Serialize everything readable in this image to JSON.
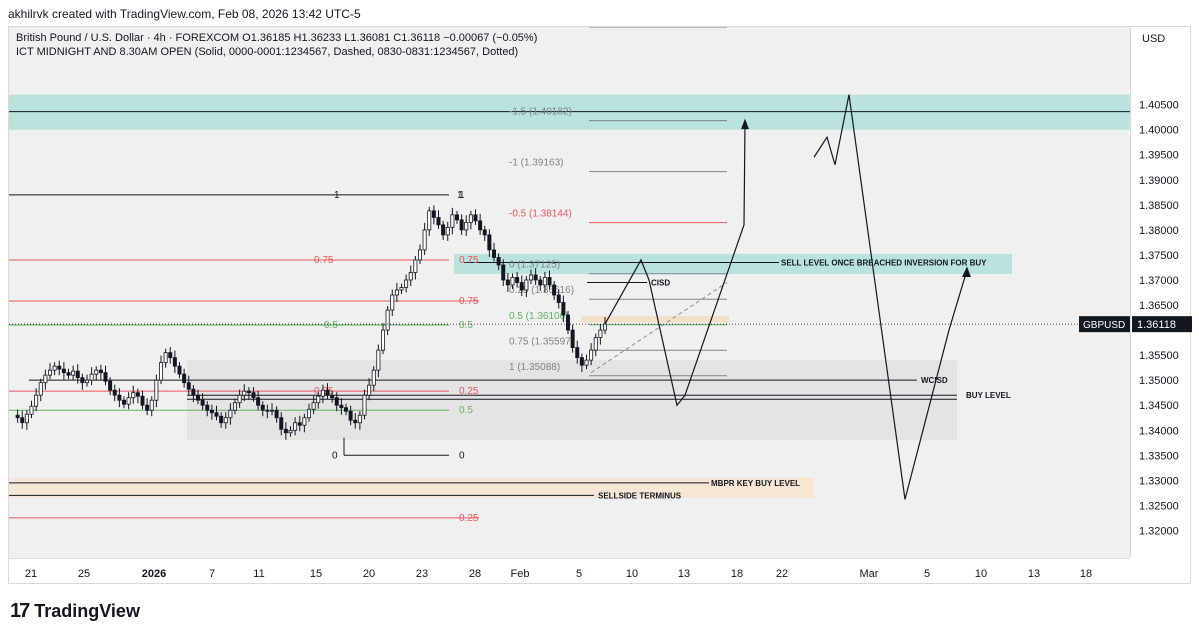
{
  "header": {
    "attribution": "akhilrvk created with TradingView.com, Feb 08, 2026 13:42 UTC-5"
  },
  "legend": {
    "line1": "British Pound / U.S. Dollar · 4h · FOREXCOM  O1.36185  H1.36233  L1.36081  C1.36118  −0.00067 (−0.05%)",
    "line2": "ICT MIDNIGHT AND 8.30AM OPEN (Solid, 0000-0001:1234567, Dashed, 0830-0831:1234567, Dotted)"
  },
  "currency": "USD",
  "brand": {
    "mark": "17",
    "name": "TradingView"
  },
  "colors": {
    "zone_teal": "#b9e3dc",
    "zone_peach": "#f6e6d3",
    "zone_grey": "#e6e6e6",
    "bg_plot": "#f0f0f0",
    "red_level": "#e8575a",
    "green_level": "#5fb55d",
    "orange_level": "#f3b574",
    "candle_up": "#ffffff",
    "candle_down": "#131722",
    "line_dark": "#131722",
    "fib_grey": "#7f8389"
  },
  "chart_data": {
    "type": "candlestick",
    "title": "British Pound / U.S. Dollar · 4h · FOREXCOM",
    "symbol": "GBPUSD",
    "last_price": "1.36118",
    "ylim": [
      1.3145,
      1.4205
    ],
    "y_ticks": [
      "1.40500",
      "1.40000",
      "1.39500",
      "1.39000",
      "1.38500",
      "1.38000",
      "1.37500",
      "1.37000",
      "1.36500",
      "1.35500",
      "1.35000",
      "1.34500",
      "1.34000",
      "1.33500",
      "1.33000",
      "1.32500",
      "1.32000"
    ],
    "x_ticks": [
      {
        "label": "21",
        "bold": false
      },
      {
        "label": "25",
        "bold": false
      },
      {
        "label": "2026",
        "bold": true
      },
      {
        "label": "7",
        "bold": false
      },
      {
        "label": "11",
        "bold": false
      },
      {
        "label": "15",
        "bold": false
      },
      {
        "label": "20",
        "bold": false
      },
      {
        "label": "23",
        "bold": false
      },
      {
        "label": "28",
        "bold": false
      },
      {
        "label": "Feb",
        "bold": false
      },
      {
        "label": "5",
        "bold": false
      },
      {
        "label": "10",
        "bold": false
      },
      {
        "label": "13",
        "bold": false
      },
      {
        "label": "18",
        "bold": false
      },
      {
        "label": "22",
        "bold": false
      },
      {
        "label": "Mar",
        "bold": false
      },
      {
        "label": "5",
        "bold": false
      },
      {
        "label": "10",
        "bold": false
      },
      {
        "label": "13",
        "bold": false
      },
      {
        "label": "18",
        "bold": false
      }
    ],
    "price_path": [
      1.343,
      1.3425,
      1.3415,
      1.3432,
      1.3448,
      1.347,
      1.3495,
      1.351,
      1.352,
      1.3528,
      1.3522,
      1.3515,
      1.351,
      1.3518,
      1.3505,
      1.3495,
      1.35,
      1.3512,
      1.352,
      1.3515,
      1.3498,
      1.348,
      1.347,
      1.346,
      1.3452,
      1.3465,
      1.3475,
      1.3468,
      1.345,
      1.344,
      1.346,
      1.35,
      1.3535,
      1.3555,
      1.3545,
      1.3528,
      1.3512,
      1.3495,
      1.3482,
      1.347,
      1.346,
      1.345,
      1.344,
      1.3435,
      1.3428,
      1.3415,
      1.3425,
      1.344,
      1.3455,
      1.347,
      1.3478,
      1.3475,
      1.3465,
      1.345,
      1.344,
      1.3438,
      1.344,
      1.3425,
      1.3402,
      1.3395,
      1.34,
      1.3415,
      1.341,
      1.3425,
      1.3442,
      1.3455,
      1.3468,
      1.348,
      1.347,
      1.3465,
      1.345,
      1.3445,
      1.3438,
      1.342,
      1.3415,
      1.343,
      1.347,
      1.349,
      1.352,
      1.356,
      1.36,
      1.364,
      1.367,
      1.368,
      1.3685,
      1.37,
      1.3715,
      1.374,
      1.376,
      1.38,
      1.3838,
      1.3825,
      1.381,
      1.379,
      1.3805,
      1.383,
      1.382,
      1.38,
      1.3815,
      1.383,
      1.3818,
      1.38,
      1.379,
      1.376,
      1.3745,
      1.373,
      1.37,
      1.369,
      1.3705,
      1.3695,
      1.368,
      1.37,
      1.371,
      1.37,
      1.369,
      1.3705,
      1.369,
      1.367,
      1.3655,
      1.363,
      1.36,
      1.3565,
      1.3545,
      1.353,
      1.354,
      1.356,
      1.3585,
      1.36,
      1.3612
    ],
    "zones": [
      {
        "name": "teal-top",
        "from": 1.4,
        "to": 1.407,
        "color": "#b9e3dc"
      },
      {
        "name": "teal-sell",
        "from": 1.3712,
        "to": 1.3752,
        "color": "#b9e3dc"
      },
      {
        "name": "orange-band",
        "from": 1.3615,
        "to": 1.3628,
        "color": "#f3e0c8"
      },
      {
        "name": "grey-box",
        "from": 1.338,
        "to": 1.354,
        "color": "#e4e4e4"
      },
      {
        "name": "peach-low",
        "from": 1.3265,
        "to": 1.3305,
        "color": "#f6e6d3"
      }
    ],
    "levels": [
      {
        "price": 1.4036,
        "style": "solid",
        "color": "#131722",
        "label": ""
      },
      {
        "price": 1.3735,
        "style": "solid",
        "color": "#131722",
        "label": "SELL LEVEL ONCE BREACHED INVERSION FOR BUY"
      },
      {
        "price": 1.35,
        "style": "solid",
        "color": "#131722",
        "label": "WCISD"
      },
      {
        "price": 1.347,
        "style": "solid",
        "color": "#131722",
        "label": "BUY LEVEL"
      },
      {
        "price": 1.3295,
        "style": "solid",
        "color": "#131722",
        "label": "MBPR KEY BUY LEVEL"
      },
      {
        "price": 1.327,
        "style": "solid",
        "color": "#131722",
        "label": "SELLSIDE TERMINUS"
      }
    ],
    "fib_left": [
      {
        "ratio": "1",
        "price": 1.387,
        "color": "#131722"
      },
      {
        "ratio": "0.75",
        "price": 1.374,
        "color": "#e8575a"
      },
      {
        "ratio": "0.75",
        "price": 1.3658,
        "color": "#e8575a"
      },
      {
        "ratio": "0.5",
        "price": 1.361,
        "color": "#5fb55d"
      },
      {
        "ratio": "0.25",
        "price": 1.3478,
        "color": "#e8575a"
      },
      {
        "ratio": "0.5",
        "price": 1.344,
        "color": "#5fb55d"
      },
      {
        "ratio": "0",
        "price": 1.335,
        "color": "#131722"
      },
      {
        "ratio": "0.25",
        "price": 1.3225,
        "color": "#e8575a"
      }
    ],
    "fib_right": [
      {
        "label": "-1.5 (1.40182)",
        "price": 1.40182,
        "color": "#7f8389"
      },
      {
        "label": "-1 (1.39163)",
        "price": 1.39163,
        "color": "#7f8389"
      },
      {
        "label": "-0.5 (1.38144)",
        "price": 1.38144,
        "color": "#e8575a"
      },
      {
        "label": "0 (1.37125)",
        "price": 1.37125,
        "color": "#7f8389"
      },
      {
        "label": "0.25 (1.36616)",
        "price": 1.36616,
        "color": "#7f8389"
      },
      {
        "label": "0.5 (1.36106)",
        "price": 1.36106,
        "color": "#5fb55d"
      },
      {
        "label": "0.75 (1.35597)",
        "price": 1.35597,
        "color": "#7f8389"
      },
      {
        "label": "1 (1.35088)",
        "price": 1.35088,
        "color": "#7f8389"
      }
    ],
    "annotations": [
      {
        "text": "CISD",
        "price": 1.3695
      },
      {
        "text": "0.75",
        "price": 1.374
      },
      {
        "text": "0.5",
        "price": 1.361
      },
      {
        "text": "0.25",
        "price": 1.3478
      },
      {
        "text": "0.5",
        "price": 1.344
      },
      {
        "text": "0",
        "price": 1.335
      }
    ],
    "projection_a": [
      1.3612,
      1.374,
      1.37,
      1.345,
      1.347,
      1.381,
      1.4015
    ],
    "projection_b": [
      1.3945,
      1.3985,
      1.393,
      1.407,
      1.3262,
      1.36,
      1.372
    ]
  }
}
